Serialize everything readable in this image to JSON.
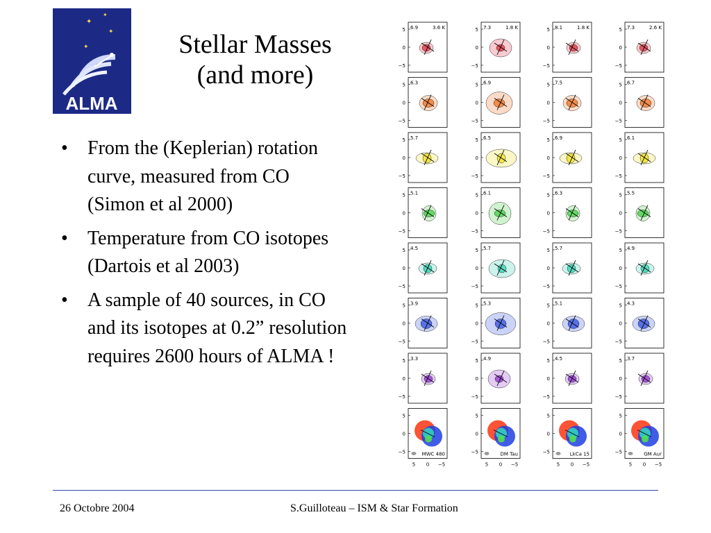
{
  "logo": {
    "text": "ALMA"
  },
  "title": {
    "line1": "Stellar Masses",
    "line2": "(and more)"
  },
  "bullets": [
    "From the (Keplerian) rotation curve, measured from CO (Simon et al 2000)",
    "Temperature from CO isotopes (Dartois et al 2003)",
    "A sample of 40 sources, in CO and its isotopes at 0.2” resolution requires 2600 hours of ALMA !"
  ],
  "figure": {
    "columns": [
      {
        "source": "MWC 480",
        "temp": "3.6 K",
        "velocities": [
          "6.9",
          "6.3",
          "5.7",
          "5.1",
          "4.5",
          "3.9",
          "3.3"
        ]
      },
      {
        "source": "DM Tau",
        "temp": "1.8 K",
        "velocities": [
          "7.3",
          "6.9",
          "6.5",
          "6.1",
          "5.7",
          "5.3",
          "4.9"
        ]
      },
      {
        "source": "LkCa 15",
        "temp": "1.8 K",
        "velocities": [
          "8.1",
          "7.5",
          "6.9",
          "6.3",
          "5.7",
          "5.1",
          "4.5"
        ]
      },
      {
        "source": "GM Aur",
        "temp": "2.6 K",
        "velocities": [
          "7.3",
          "6.7",
          "6.1",
          "5.5",
          "4.9",
          "4.3",
          "3.7"
        ]
      }
    ],
    "y_ticks": [
      "5",
      "0",
      "−5"
    ],
    "x_ticks": [
      "5",
      "0",
      "−5"
    ],
    "row_colors": [
      "#e03040",
      "#f07020",
      "#f0e020",
      "#40d040",
      "#30d0b0",
      "#3050e0",
      "#9030d0"
    ]
  },
  "footer": {
    "date": "26 Octobre 2004",
    "author": "S.Guilloteau – ISM & Star Formation"
  }
}
